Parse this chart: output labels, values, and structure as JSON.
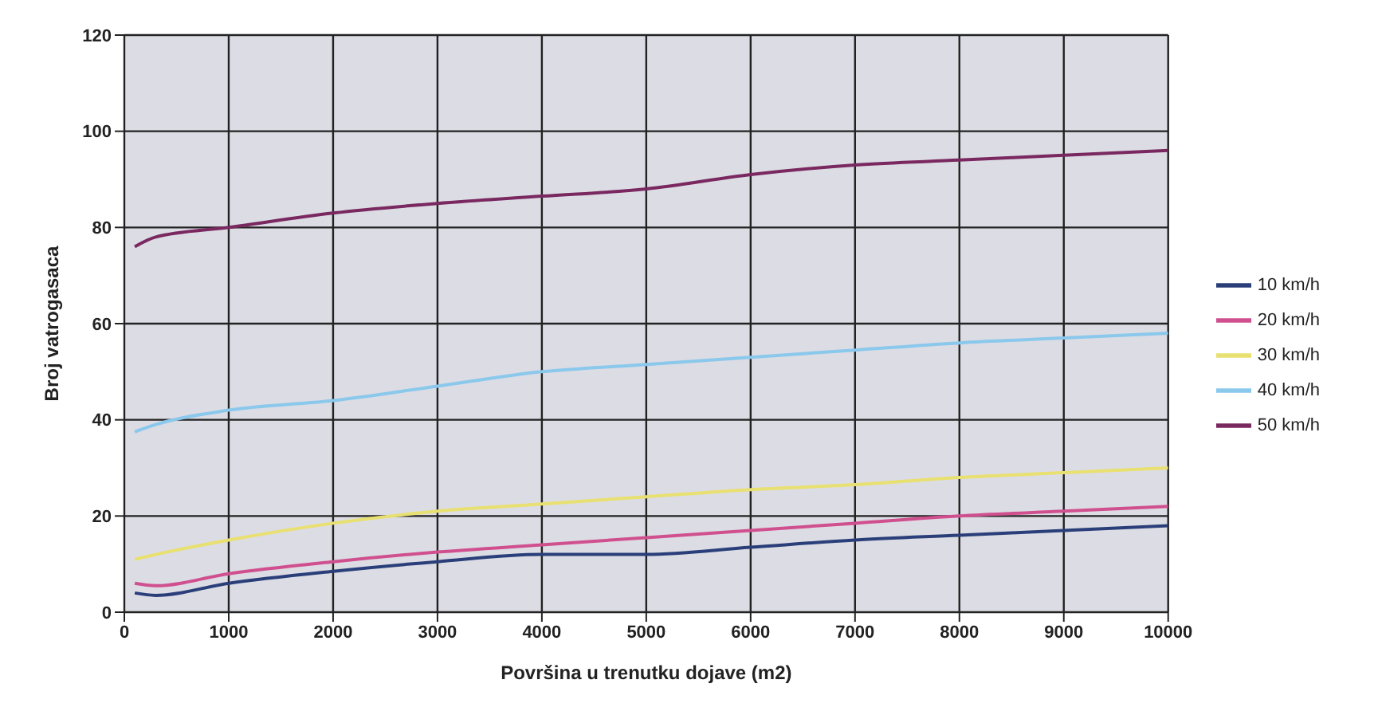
{
  "chart_data": {
    "type": "line",
    "xlabel": "Površina u trenutku dojave (m2)",
    "ylabel": "Broj vatrogasaca",
    "x": [
      100,
      300,
      1000,
      2000,
      3000,
      4000,
      5000,
      6000,
      7000,
      8000,
      9000,
      10000
    ],
    "series": [
      {
        "name": "10 km/h",
        "color": "#2a3f7a",
        "values": [
          4,
          3.5,
          6,
          8.5,
          10.5,
          12,
          12,
          13.5,
          15,
          16,
          17,
          18
        ]
      },
      {
        "name": "20 km/h",
        "color": "#d0508f",
        "values": [
          6,
          5.5,
          8,
          10.5,
          12.5,
          14,
          15.5,
          17,
          18.5,
          20,
          21,
          22
        ]
      },
      {
        "name": "30 km/h",
        "color": "#e8e070",
        "values": [
          11,
          12,
          15,
          18.5,
          21,
          22.5,
          24,
          25.5,
          26.5,
          28,
          29,
          30
        ]
      },
      {
        "name": "40 km/h",
        "color": "#8ac8ec",
        "values": [
          37.5,
          39,
          42,
          44,
          47,
          50,
          51.5,
          53,
          54.5,
          56,
          57,
          58
        ]
      },
      {
        "name": "50 km/h",
        "color": "#7a2860",
        "values": [
          76,
          78,
          80,
          83,
          85,
          86.5,
          88,
          91,
          93,
          94,
          95,
          96
        ]
      }
    ],
    "xlim": [
      0,
      10000
    ],
    "xticks": [
      0,
      1000,
      2000,
      3000,
      4000,
      5000,
      6000,
      7000,
      8000,
      9000,
      10000
    ],
    "ylim": [
      0,
      120
    ],
    "yticks": [
      0,
      20,
      40,
      60,
      80,
      100,
      120
    ],
    "grid": true,
    "legend": "right",
    "marker": "none",
    "line_style": "solid"
  }
}
